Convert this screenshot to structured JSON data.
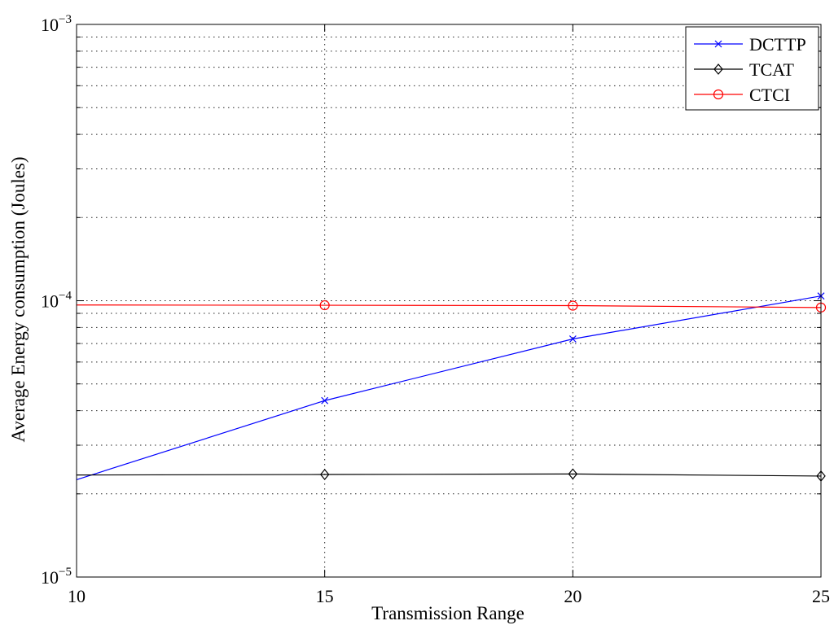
{
  "chart_data": {
    "type": "line",
    "xlabel": "Transmission Range",
    "ylabel": "Average Energy consumption (Joules)",
    "x_ticks": [
      "10",
      "15",
      "20",
      "25"
    ],
    "y_ticks": [
      {
        "value": 1e-05,
        "base": "10",
        "exp": "−5"
      },
      {
        "value": 0.0001,
        "base": "10",
        "exp": "−4"
      },
      {
        "value": 0.001,
        "base": "10",
        "exp": "−3"
      }
    ],
    "xlim": [
      10,
      25
    ],
    "ylim": [
      1e-05,
      0.001
    ],
    "yscale": "log",
    "grid": true,
    "legend_position": "top-right",
    "series": [
      {
        "name": "DCTTP",
        "color": "#0000ff",
        "marker": "x",
        "x": [
          10,
          15,
          20,
          25
        ],
        "y": [
          2.25e-05,
          4.35e-05,
          7.27e-05,
          0.000104
        ]
      },
      {
        "name": "TCAT",
        "color": "#000000",
        "marker": "diamond",
        "x": [
          10,
          15,
          20,
          25
        ],
        "y": [
          2.34e-05,
          2.35e-05,
          2.36e-05,
          2.32e-05
        ]
      },
      {
        "name": "CTCI",
        "color": "#ff0000",
        "marker": "circle",
        "x": [
          10,
          15,
          20,
          25
        ],
        "y": [
          9.65e-05,
          9.63e-05,
          9.6e-05,
          9.45e-05
        ]
      }
    ]
  }
}
